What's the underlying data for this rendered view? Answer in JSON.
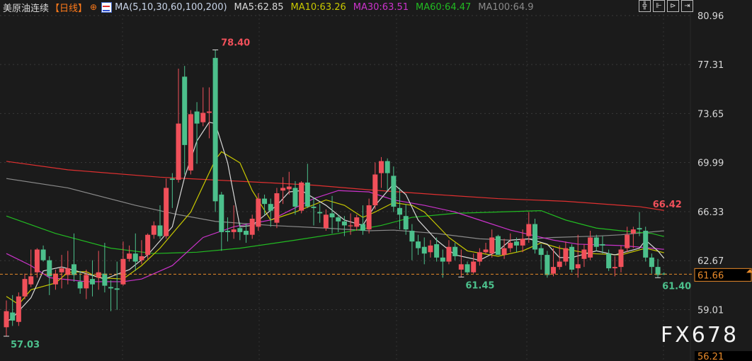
{
  "header": {
    "symbol": "美原油连续",
    "period": "【日线】",
    "target_icon": "crosshair-target-icon",
    "indicator_icon": "indicator-chart-icon",
    "ma_params": "MA(5,10,30,60,100,200)",
    "ma5": "MA5:62.85",
    "ma10": "MA10:63.26",
    "ma30": "MA30:63.51",
    "ma60": "MA60:64.47",
    "ma100": "MA100:64.9"
  },
  "toolbar": {
    "icons": [
      "crosshair-icon",
      "zoom-range-icon",
      "play-replay-icon",
      "exit-icon"
    ],
    "glyphs": [
      "╬",
      "⊩",
      "⊳",
      "⇥"
    ]
  },
  "watermark": "FX678",
  "colors": {
    "background": "#1b1b1b",
    "up": "#f0505a",
    "down": "#4cc08c",
    "ma5": "#d8d8d8",
    "ma10": "#c8c800",
    "ma30": "#cc33cc",
    "ma60": "#22bb22",
    "ma100": "#8a8a8a",
    "ma200": "#e03030",
    "current_price": "#e88a2a"
  },
  "chart_data": {
    "type": "candlestick",
    "title": "美原油连续【日线】",
    "ylim": [
      56.21,
      80.96
    ],
    "yticks": [
      "80.96",
      "77.31",
      "73.65",
      "69.99",
      "66.33",
      "62.67",
      "59.01"
    ],
    "y_bottom_label": "56.21",
    "current_price": "61.66",
    "grid": true,
    "ohlc": [
      [
        57.7,
        59.7,
        57.03,
        58.9
      ],
      [
        58.8,
        60.1,
        57.8,
        58.2
      ],
      [
        58.1,
        60.3,
        57.8,
        60.0
      ],
      [
        60.0,
        61.7,
        59.8,
        61.3
      ],
      [
        60.9,
        63.5,
        60.7,
        61.5
      ],
      [
        61.8,
        63.6,
        61.4,
        63.5
      ],
      [
        63.5,
        63.8,
        62.6,
        62.7
      ],
      [
        62.7,
        63.0,
        60.1,
        61.5
      ],
      [
        60.9,
        62.0,
        60.5,
        61.7
      ],
      [
        61.8,
        63.1,
        60.6,
        62.1
      ],
      [
        61.6,
        63.4,
        60.9,
        62.1
      ],
      [
        62.4,
        64.7,
        61.1,
        61.6
      ],
      [
        61.1,
        61.9,
        60.2,
        60.6
      ],
      [
        60.6,
        62.0,
        59.8,
        61.6
      ],
      [
        61.3,
        62.7,
        60.0,
        60.9
      ],
      [
        61.4,
        63.4,
        60.5,
        61.8
      ],
      [
        61.7,
        64.0,
        60.3,
        60.8
      ],
      [
        60.7,
        61.2,
        58.9,
        60.6
      ],
      [
        60.6,
        62.6,
        59.0,
        60.5
      ],
      [
        60.9,
        64.1,
        60.8,
        62.8
      ],
      [
        62.8,
        63.8,
        62.6,
        63.2
      ],
      [
        63.2,
        64.7,
        61.9,
        62.6
      ],
      [
        62.7,
        64.2,
        62.4,
        63.0
      ],
      [
        63.1,
        64.7,
        62.8,
        64.6
      ],
      [
        64.6,
        65.6,
        64.3,
        65.3
      ],
      [
        65.3,
        66.8,
        64.3,
        64.5
      ],
      [
        64.5,
        68.8,
        64.3,
        68.1
      ],
      [
        68.8,
        69.2,
        66.6,
        68.7
      ],
      [
        68.7,
        77.0,
        68.5,
        72.9
      ],
      [
        76.4,
        77.2,
        69.1,
        71.3
      ],
      [
        69.4,
        73.9,
        69.1,
        73.6
      ],
      [
        73.8,
        74.5,
        69.9,
        72.9
      ],
      [
        73.0,
        75.6,
        72.7,
        73.7
      ],
      [
        73.7,
        75.6,
        71.8,
        73.8
      ],
      [
        77.8,
        78.4,
        66.3,
        67.1
      ],
      [
        67.6,
        67.8,
        63.4,
        64.8
      ],
      [
        64.9,
        65.9,
        64.1,
        64.8
      ],
      [
        64.8,
        66.8,
        64.3,
        65.0
      ],
      [
        65.1,
        65.5,
        64.2,
        64.8
      ],
      [
        64.9,
        65.4,
        64.0,
        64.6
      ],
      [
        64.6,
        66.1,
        64.3,
        65.8
      ],
      [
        65.2,
        67.7,
        64.9,
        67.3
      ],
      [
        67.3,
        67.6,
        66.1,
        66.9
      ],
      [
        66.9,
        67.3,
        65.2,
        66.4
      ],
      [
        65.5,
        68.1,
        65.1,
        67.7
      ],
      [
        67.9,
        68.9,
        66.9,
        68.1
      ],
      [
        68.0,
        69.3,
        67.6,
        68.2
      ],
      [
        68.1,
        68.6,
        66.1,
        66.7
      ],
      [
        66.4,
        68.6,
        66.2,
        68.5
      ],
      [
        68.5,
        69.9,
        66.6,
        66.7
      ],
      [
        66.7,
        67.4,
        65.3,
        66.6
      ],
      [
        66.3,
        66.9,
        65.5,
        66.2
      ],
      [
        65.1,
        66.5,
        64.9,
        66.1
      ],
      [
        66.2,
        67.5,
        64.7,
        65.9
      ],
      [
        65.9,
        66.1,
        64.8,
        65.6
      ],
      [
        65.6,
        66.0,
        64.5,
        65.3
      ],
      [
        65.3,
        66.2,
        64.6,
        65.3
      ],
      [
        65.2,
        66.1,
        64.9,
        65.9
      ],
      [
        65.4,
        66.8,
        64.6,
        64.9
      ],
      [
        65.0,
        67.3,
        64.7,
        66.8
      ],
      [
        66.8,
        70.0,
        66.5,
        69.1
      ],
      [
        69.2,
        70.4,
        68.1,
        70.1
      ],
      [
        70.1,
        70.3,
        67.9,
        69.2
      ],
      [
        69.0,
        69.7,
        66.3,
        66.7
      ],
      [
        66.6,
        68.1,
        65.0,
        66.1
      ],
      [
        66.0,
        66.9,
        64.6,
        65.0
      ],
      [
        64.9,
        65.4,
        62.7,
        64.1
      ],
      [
        64.1,
        64.6,
        63.1,
        63.6
      ],
      [
        63.7,
        64.4,
        62.4,
        63.2
      ],
      [
        63.3,
        64.2,
        62.9,
        63.8
      ],
      [
        63.9,
        64.4,
        62.6,
        62.9
      ],
      [
        62.9,
        63.5,
        61.4,
        62.6
      ],
      [
        62.6,
        64.2,
        62.4,
        63.7
      ],
      [
        63.7,
        64.0,
        62.7,
        63.0
      ],
      [
        62.0,
        63.5,
        61.45,
        62.4
      ],
      [
        62.4,
        62.6,
        61.6,
        61.8
      ],
      [
        61.8,
        63.2,
        61.7,
        62.6
      ],
      [
        62.6,
        63.6,
        62.3,
        63.3
      ],
      [
        63.3,
        64.0,
        63.2,
        63.5
      ],
      [
        63.2,
        65.0,
        62.9,
        64.4
      ],
      [
        64.5,
        64.6,
        63.1,
        63.1
      ],
      [
        63.1,
        64.3,
        62.8,
        63.6
      ],
      [
        63.6,
        64.7,
        63.3,
        64.0
      ],
      [
        64.1,
        64.4,
        63.3,
        63.8
      ],
      [
        63.8,
        65.0,
        63.3,
        64.3
      ],
      [
        64.5,
        66.3,
        64.0,
        65.4
      ],
      [
        65.4,
        65.8,
        63.2,
        63.5
      ],
      [
        63.6,
        63.9,
        62.0,
        63.1
      ],
      [
        63.1,
        63.4,
        61.4,
        61.6
      ],
      [
        61.7,
        63.6,
        61.5,
        62.2
      ],
      [
        62.2,
        63.8,
        62.0,
        62.6
      ],
      [
        62.6,
        64.1,
        62.3,
        63.6
      ],
      [
        63.7,
        63.9,
        61.8,
        62.0
      ],
      [
        62.1,
        64.6,
        61.4,
        62.4
      ],
      [
        62.8,
        63.9,
        62.2,
        63.5
      ],
      [
        62.9,
        64.9,
        62.7,
        64.4
      ],
      [
        64.4,
        64.6,
        63.4,
        63.7
      ],
      [
        63.9,
        64.5,
        63.2,
        63.8
      ],
      [
        63.2,
        63.5,
        61.9,
        62.1
      ],
      [
        62.1,
        63.0,
        61.5,
        62.2
      ],
      [
        62.2,
        63.8,
        61.8,
        63.5
      ],
      [
        63.6,
        65.2,
        63.3,
        64.6
      ],
      [
        64.7,
        65.2,
        63.6,
        65.0
      ],
      [
        65.1,
        66.3,
        64.5,
        65.0
      ],
      [
        64.9,
        65.2,
        62.6,
        62.9
      ],
      [
        62.9,
        63.2,
        61.7,
        62.2
      ],
      [
        62.2,
        62.8,
        61.4,
        61.6
      ],
      [
        61.7,
        61.8,
        61.6,
        61.66
      ]
    ],
    "moving_averages": [
      {
        "name": "MA200",
        "color": "#e03030",
        "points": [
          [
            0,
            70.08
          ],
          [
            10,
            69.45
          ],
          [
            25,
            68.9
          ],
          [
            42,
            68.5
          ],
          [
            50,
            68.3
          ],
          [
            59,
            67.96
          ],
          [
            70,
            67.6
          ],
          [
            80,
            67.3
          ],
          [
            91,
            67.1
          ],
          [
            103,
            66.7
          ],
          [
            107,
            66.42
          ]
        ]
      },
      {
        "name": "MA100",
        "color": "#8a8a8a",
        "points": [
          [
            0,
            68.8
          ],
          [
            10,
            68.1
          ],
          [
            21,
            66.8
          ],
          [
            28,
            66.1
          ],
          [
            34,
            65.6
          ],
          [
            43,
            65.3
          ],
          [
            52,
            65.1
          ],
          [
            59,
            64.9
          ],
          [
            63,
            64.95
          ],
          [
            70,
            64.7
          ],
          [
            77,
            64.3
          ],
          [
            82,
            64.2
          ],
          [
            89,
            64.4
          ],
          [
            96,
            64.5
          ],
          [
            100,
            64.6
          ],
          [
            107,
            64.9
          ]
        ]
      },
      {
        "name": "MA60",
        "color": "#22bb22",
        "points": [
          [
            0,
            66.0
          ],
          [
            8,
            64.7
          ],
          [
            17,
            63.6
          ],
          [
            24,
            63.2
          ],
          [
            31,
            63.3
          ],
          [
            38,
            63.6
          ],
          [
            47,
            64.2
          ],
          [
            54,
            64.7
          ],
          [
            61,
            65.3
          ],
          [
            66,
            65.9
          ],
          [
            73,
            66.2
          ],
          [
            80,
            66.3
          ],
          [
            87,
            66.4
          ],
          [
            91,
            65.7
          ],
          [
            96,
            65.1
          ],
          [
            100,
            64.9
          ],
          [
            105,
            64.7
          ],
          [
            107,
            64.47
          ]
        ]
      },
      {
        "name": "MA30",
        "color": "#cc33cc",
        "points": [
          [
            0,
            63.2
          ],
          [
            4,
            62.3
          ],
          [
            7,
            61.4
          ],
          [
            13,
            61.1
          ],
          [
            19,
            61.1
          ],
          [
            22,
            61.3
          ],
          [
            27,
            62.3
          ],
          [
            32,
            64.4
          ],
          [
            37,
            65.2
          ],
          [
            43,
            65.7
          ],
          [
            50,
            67.3
          ],
          [
            54,
            67.9
          ],
          [
            59,
            67.8
          ],
          [
            63,
            67.2
          ],
          [
            68,
            66.8
          ],
          [
            73,
            66.3
          ],
          [
            77,
            65.7
          ],
          [
            82,
            64.95
          ],
          [
            89,
            64.2
          ],
          [
            93,
            63.9
          ],
          [
            100,
            63.8
          ],
          [
            105,
            63.6
          ],
          [
            107,
            63.51
          ]
        ]
      },
      {
        "name": "MA10",
        "color": "#c8c800",
        "points": [
          [
            0,
            60.0
          ],
          [
            2,
            59.4
          ],
          [
            4,
            60.5
          ],
          [
            8,
            61.0
          ],
          [
            10,
            61.8
          ],
          [
            13,
            61.85
          ],
          [
            15,
            61.4
          ],
          [
            19,
            61.3
          ],
          [
            22,
            62.3
          ],
          [
            25,
            63.6
          ],
          [
            30,
            66.3
          ],
          [
            34,
            70.2
          ],
          [
            35,
            70.8
          ],
          [
            38,
            69.97
          ],
          [
            40,
            67.9
          ],
          [
            43,
            65.7
          ],
          [
            47,
            66.3
          ],
          [
            52,
            67.2
          ],
          [
            55,
            66.8
          ],
          [
            58,
            65.9
          ],
          [
            60,
            66.3
          ],
          [
            63,
            67.0
          ],
          [
            66,
            66.8
          ],
          [
            68,
            66.3
          ],
          [
            72,
            64.4
          ],
          [
            75,
            63.4
          ],
          [
            80,
            63.0
          ],
          [
            84,
            63.4
          ],
          [
            87,
            64.0
          ],
          [
            90,
            63.6
          ],
          [
            95,
            63.2
          ],
          [
            100,
            63.1
          ],
          [
            104,
            63.6
          ],
          [
            107,
            63.26
          ]
        ]
      },
      {
        "name": "MA5",
        "color": "#d8d8d8",
        "points": [
          [
            0,
            58.1
          ],
          [
            1,
            58.4
          ],
          [
            4,
            59.9
          ],
          [
            6,
            61.9
          ],
          [
            9,
            62.2
          ],
          [
            13,
            61.7
          ],
          [
            16,
            61.3
          ],
          [
            20,
            62.0
          ],
          [
            23,
            63.1
          ],
          [
            27,
            65.2
          ],
          [
            29,
            68.9
          ],
          [
            31,
            71.6
          ],
          [
            33,
            73.0
          ],
          [
            34,
            72.9
          ],
          [
            36,
            69.97
          ],
          [
            38,
            65.2
          ],
          [
            40,
            65.3
          ],
          [
            44,
            66.8
          ],
          [
            46,
            67.8
          ],
          [
            48,
            67.9
          ],
          [
            52,
            66.8
          ],
          [
            55,
            65.7
          ],
          [
            58,
            65.3
          ],
          [
            60,
            66.8
          ],
          [
            63,
            68.4
          ],
          [
            65,
            67.6
          ],
          [
            67,
            65.7
          ],
          [
            70,
            64.2
          ],
          [
            73,
            63.1
          ],
          [
            75,
            62.9
          ],
          [
            77,
            62.7
          ],
          [
            80,
            63.4
          ],
          [
            82,
            64.2
          ],
          [
            85,
            64.3
          ],
          [
            88,
            63.9
          ],
          [
            90,
            62.9
          ],
          [
            92,
            62.9
          ],
          [
            96,
            63.4
          ],
          [
            99,
            63.1
          ],
          [
            103,
            63.6
          ],
          [
            104,
            64.2
          ],
          [
            106,
            63.4
          ],
          [
            107,
            62.85
          ]
        ]
      }
    ],
    "annotations": [
      {
        "text": "78.40",
        "index": 34,
        "price": 78.4,
        "kind": "high"
      },
      {
        "text": "57.03",
        "index": 0,
        "price": 57.03,
        "kind": "low"
      },
      {
        "text": "61.45",
        "index": 74,
        "price": 61.45,
        "kind": "low"
      },
      {
        "text": "61.40",
        "index": 106,
        "price": 61.4,
        "kind": "low"
      },
      {
        "text": "66.42",
        "index": 104,
        "price": 66.42,
        "kind": "ma200"
      }
    ]
  }
}
